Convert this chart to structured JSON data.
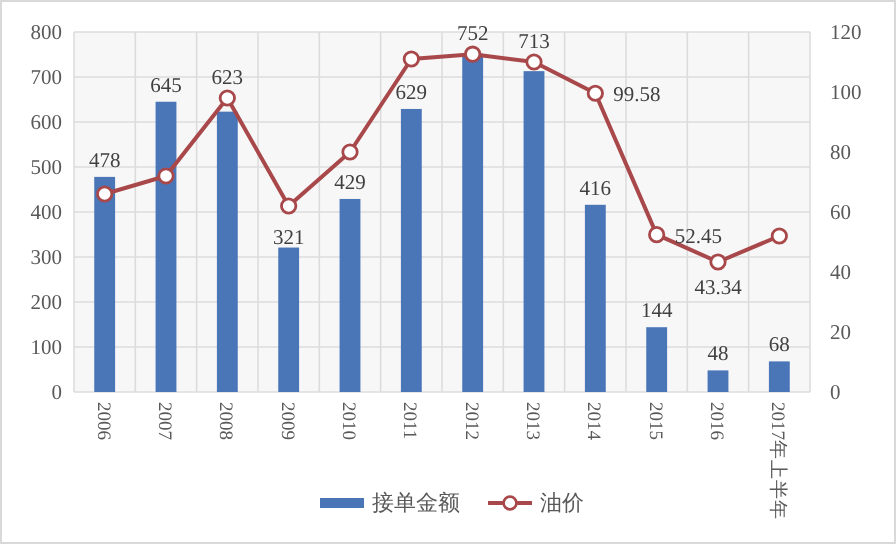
{
  "chart_data": {
    "type": "bar",
    "categories": [
      "2006",
      "2007",
      "2008",
      "2009",
      "2010",
      "2011",
      "2012",
      "2013",
      "2014",
      "2015",
      "2016",
      "2017年上半年"
    ],
    "series": [
      {
        "name": "接单金额",
        "type": "bar",
        "color": "#4a76b8",
        "values": [
          478,
          645,
          623,
          321,
          429,
          629,
          752,
          713,
          416,
          144,
          48,
          68
        ],
        "value_labels": [
          "478",
          "645",
          "623",
          "321",
          "429",
          "629",
          "752",
          "713",
          "416",
          "144",
          "48",
          "68"
        ]
      },
      {
        "name": "油价",
        "type": "line",
        "axis": "y2",
        "color": "#a8484a",
        "marker": "circle",
        "values": [
          66,
          72,
          98,
          62,
          80,
          111,
          112.6,
          110,
          99.58,
          52.45,
          43.34,
          52
        ],
        "value_labels": [
          null,
          null,
          null,
          null,
          null,
          null,
          null,
          null,
          "99.58",
          "52.45",
          "43.34",
          null
        ]
      }
    ],
    "ylim": [
      0,
      800
    ],
    "yticks": [
      0,
      100,
      200,
      300,
      400,
      500,
      600,
      700,
      800
    ],
    "y2lim": [
      0,
      120
    ],
    "y2ticks": [
      0,
      20,
      40,
      60,
      80,
      100,
      120
    ],
    "grid": true,
    "legend": "bottom"
  }
}
